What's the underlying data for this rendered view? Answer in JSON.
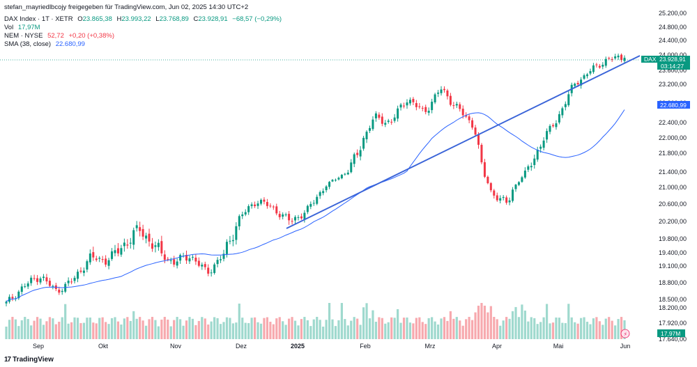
{
  "header": {
    "shared_by": "stefan_mayriedlbcojy freigegeben für TradingView.com, Jun 02, 2025 14:30 UTC+2",
    "symbol": "DAX Index · 1T · XETR",
    "o_label": "O",
    "o_value": "23.865,38",
    "h_label": "H",
    "h_value": "23.993,22",
    "l_label": "L",
    "l_value": "23.768,89",
    "c_label": "C",
    "c_value": "23.928,91",
    "change": "−68,57 (−0,29%)",
    "vol_label": "Vol",
    "vol_value": "17,97M",
    "nem_label": "NEM · NYSE",
    "nem_value": "52,72",
    "nem_change": "+0,20 (+0,38%)",
    "sma_label": "SMA (38, close)",
    "sma_value": "22.680,99"
  },
  "badges": {
    "dax_label": "DAX",
    "dax_price": "23.928,91",
    "dax_countdown": "03:14:27",
    "sma_price": "22.680,99",
    "vol_price": "17,97M"
  },
  "footer": {
    "brand": "TradingView"
  },
  "colors": {
    "up": "#089981",
    "down": "#f23645",
    "vol_up": "#9fd9ce",
    "vol_down": "#f7a9ae",
    "sma": "#2962ff",
    "trend": "#3a64d8"
  },
  "chart_data": {
    "type": "candlestick",
    "y_ticks": [
      "25.200,00",
      "24.800,00",
      "24.400,00",
      "24.000,00",
      "23.600,00",
      "23.200,00",
      "22.800,00",
      "22.400,00",
      "22.000,00",
      "21.800,00",
      "21.400,00",
      "21.000,00",
      "20.600,00",
      "20.200,00",
      "19.800,00",
      "19.400,00",
      "19.100,00",
      "18.800,00",
      "18.500,00",
      "18.200,00",
      "17.920,00",
      "17.640,00",
      "17.360,00"
    ],
    "x_ticks": [
      "Sep",
      "Okt",
      "Nov",
      "Dez",
      "2025",
      "Feb",
      "Mrz",
      "Apr",
      "Mai",
      "Jun"
    ],
    "last_close": 23928.91,
    "sma_last": 22680.99,
    "volume_last": "17,97M",
    "trendline": {
      "start": {
        "date": "Dec 2024",
        "price": 19650
      },
      "end": {
        "date": "Jun 2025",
        "price": 23750
      }
    },
    "anchors": [
      {
        "date": "Aug 2024",
        "close": 18300
      },
      {
        "date": "Aug 2024",
        "close": 18700
      },
      {
        "date": "Sep 2024",
        "close": 18950
      },
      {
        "date": "Sep 2024",
        "close": 18600
      },
      {
        "date": "Sep 2024",
        "close": 18850
      },
      {
        "date": "Sep 2024",
        "close": 19300
      },
      {
        "date": "Okt 2024",
        "close": 19250
      },
      {
        "date": "Okt 2024",
        "close": 19500
      },
      {
        "date": "Okt 2024",
        "close": 19700
      },
      {
        "date": "Okt 2024",
        "close": 19450
      },
      {
        "date": "Nov 2024",
        "close": 19200
      },
      {
        "date": "Nov 2024",
        "close": 19350
      },
      {
        "date": "Nov 2024",
        "close": 19000
      },
      {
        "date": "Nov 2024",
        "close": 19350
      },
      {
        "date": "Dez 2024",
        "close": 19900
      },
      {
        "date": "Dez 2024",
        "close": 20300
      },
      {
        "date": "Dez 2024",
        "close": 20100
      },
      {
        "date": "Dez 2024",
        "close": 19800
      },
      {
        "date": "Jan 2025",
        "close": 20050
      },
      {
        "date": "Jan 2025",
        "close": 20600
      },
      {
        "date": "Jan 2025",
        "close": 21200
      },
      {
        "date": "Feb 2025",
        "close": 21700
      },
      {
        "date": "Feb 2025",
        "close": 22500
      },
      {
        "date": "Feb 2025",
        "close": 22400
      },
      {
        "date": "Mrz 2025",
        "close": 22900
      },
      {
        "date": "Mrz 2025",
        "close": 22600
      },
      {
        "date": "Mrz 2025",
        "close": 23100
      },
      {
        "date": "Mrz 2025",
        "close": 22700
      },
      {
        "date": "Apr 2025",
        "close": 22300
      },
      {
        "date": "Apr 2025",
        "close": 20500
      },
      {
        "date": "Apr 2025",
        "close": 20200
      },
      {
        "date": "Apr 2025",
        "close": 21300
      },
      {
        "date": "Apr 2025",
        "close": 21900
      },
      {
        "date": "Mai 2025",
        "close": 22500
      },
      {
        "date": "Mai 2025",
        "close": 23200
      },
      {
        "date": "Mai 2025",
        "close": 23600
      },
      {
        "date": "Mai 2025",
        "close": 23900
      },
      {
        "date": "Jun 2025",
        "close": 23929
      }
    ]
  }
}
